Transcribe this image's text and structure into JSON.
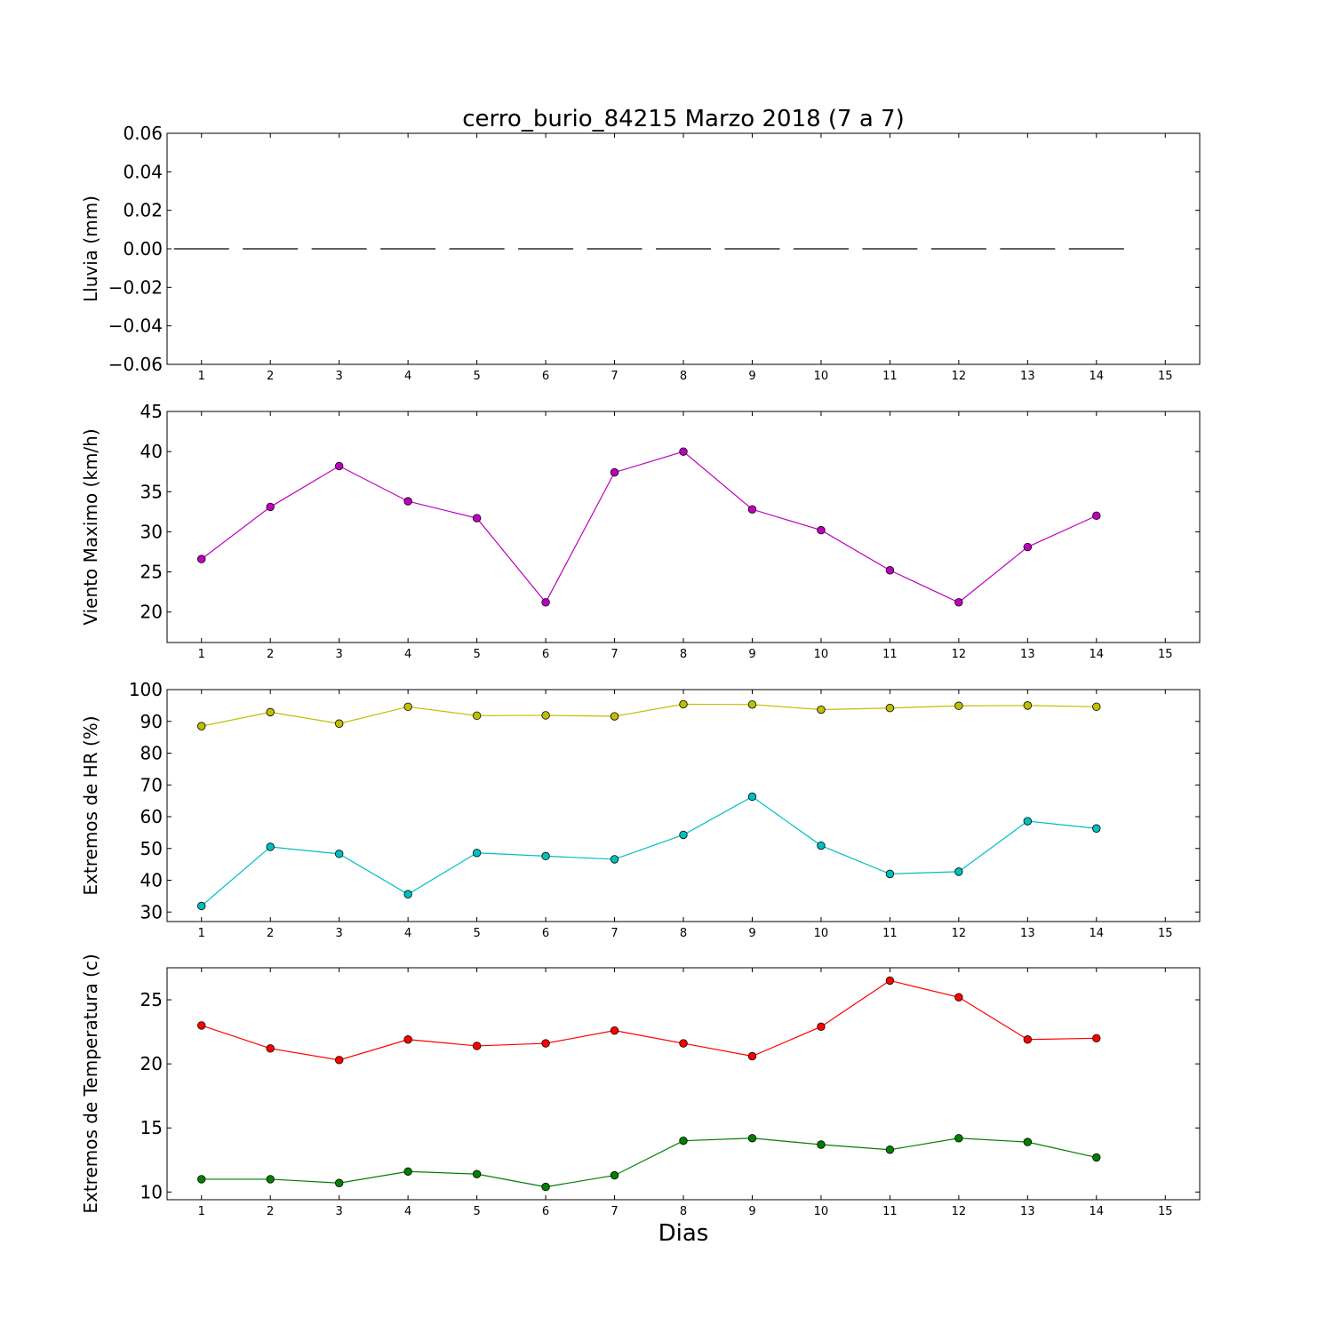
{
  "title": "cerro_burio_84215 Marzo 2018  (7 a 7)",
  "xlabel": "Dias",
  "chart_data": [
    {
      "type": "bar",
      "ylabel": "Lluvia (mm)",
      "xlim": [
        0.5,
        15.5
      ],
      "ylim": [
        -0.06,
        0.06
      ],
      "xticks": [
        1,
        2,
        3,
        4,
        5,
        6,
        7,
        8,
        9,
        10,
        11,
        12,
        13,
        14,
        15
      ],
      "yticks": [
        -0.06,
        -0.04,
        -0.02,
        0.0,
        0.02,
        0.04,
        0.06
      ],
      "ytick_labels": [
        "−0.06",
        "−0.04",
        "−0.02",
        "0.00",
        "0.02",
        "0.04",
        "0.06"
      ],
      "series": [
        {
          "x": [
            1,
            2,
            3,
            4,
            5,
            6,
            7,
            8,
            9,
            10,
            11,
            12,
            13,
            14
          ],
          "values": [
            0,
            0,
            0,
            0,
            0,
            0,
            0,
            0,
            0,
            0,
            0,
            0,
            0,
            0
          ],
          "color": "#000000"
        }
      ]
    },
    {
      "type": "line",
      "ylabel": "Viento Maximo (km/h)",
      "xlim": [
        0.5,
        15.5
      ],
      "ylim": [
        16.2,
        45
      ],
      "xticks": [
        1,
        2,
        3,
        4,
        5,
        6,
        7,
        8,
        9,
        10,
        11,
        12,
        13,
        14,
        15
      ],
      "yticks": [
        20,
        25,
        30,
        35,
        40,
        45
      ],
      "ytick_labels": [
        "20",
        "25",
        "30",
        "35",
        "40",
        "45"
      ],
      "series": [
        {
          "x": [
            1,
            2,
            3,
            4,
            5,
            6,
            7,
            8,
            9,
            10,
            11,
            12,
            13,
            14
          ],
          "values": [
            26.6,
            33.1,
            38.2,
            33.8,
            31.7,
            21.2,
            37.4,
            40.0,
            32.8,
            30.2,
            25.2,
            21.2,
            28.1,
            32.0
          ],
          "color": "#bf00bf"
        }
      ]
    },
    {
      "type": "line",
      "ylabel": "Extremos de HR (%)",
      "xlim": [
        0.5,
        15.5
      ],
      "ylim": [
        27,
        100
      ],
      "xticks": [
        1,
        2,
        3,
        4,
        5,
        6,
        7,
        8,
        9,
        10,
        11,
        12,
        13,
        14,
        15
      ],
      "yticks": [
        30,
        40,
        50,
        60,
        70,
        80,
        90,
        100
      ],
      "ytick_labels": [
        "30",
        "40",
        "50",
        "60",
        "70",
        "80",
        "90",
        "100"
      ],
      "series": [
        {
          "x": [
            1,
            2,
            3,
            4,
            5,
            6,
            7,
            8,
            9,
            10,
            11,
            12,
            13,
            14
          ],
          "values": [
            88.5,
            92.9,
            89.3,
            94.6,
            91.8,
            91.9,
            91.6,
            95.4,
            95.3,
            93.7,
            94.2,
            94.9,
            95.0,
            94.6
          ],
          "color": "#bfbf00"
        },
        {
          "x": [
            1,
            2,
            3,
            4,
            5,
            6,
            7,
            8,
            9,
            10,
            11,
            12,
            13,
            14
          ],
          "values": [
            31.9,
            50.5,
            48.3,
            35.6,
            48.6,
            47.6,
            46.6,
            54.3,
            66.3,
            50.9,
            42.0,
            42.7,
            58.6,
            56.3
          ],
          "color": "#00bfbf"
        }
      ]
    },
    {
      "type": "line",
      "ylabel": "Extremos de Temperatura (c)",
      "xlim": [
        0.5,
        15.5
      ],
      "ylim": [
        9.4,
        27.5
      ],
      "xticks": [
        1,
        2,
        3,
        4,
        5,
        6,
        7,
        8,
        9,
        10,
        11,
        12,
        13,
        14,
        15
      ],
      "yticks": [
        10,
        15,
        20,
        25
      ],
      "ytick_labels": [
        "10",
        "15",
        "20",
        "25"
      ],
      "series": [
        {
          "x": [
            1,
            2,
            3,
            4,
            5,
            6,
            7,
            8,
            9,
            10,
            11,
            12,
            13,
            14
          ],
          "values": [
            23.0,
            21.2,
            20.3,
            21.9,
            21.4,
            21.6,
            22.6,
            21.6,
            20.6,
            22.9,
            26.5,
            25.2,
            21.9,
            22.0
          ],
          "color": "#ff0000"
        },
        {
          "x": [
            1,
            2,
            3,
            4,
            5,
            6,
            7,
            8,
            9,
            10,
            11,
            12,
            13,
            14
          ],
          "values": [
            11.0,
            11.0,
            10.7,
            11.6,
            11.4,
            10.4,
            11.3,
            14.0,
            14.2,
            13.7,
            13.3,
            14.2,
            13.9,
            12.7
          ],
          "color": "#008000"
        }
      ]
    }
  ]
}
